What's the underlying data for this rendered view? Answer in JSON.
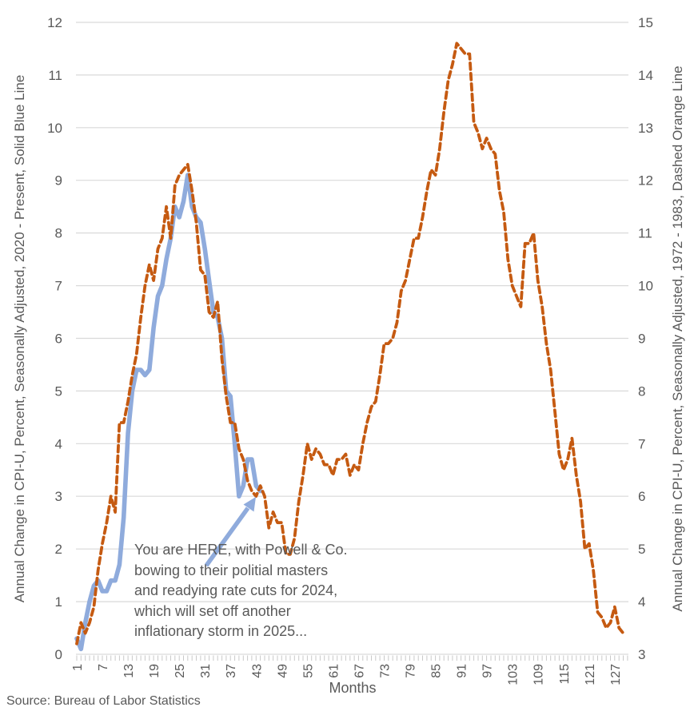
{
  "chart": {
    "left_axis": {
      "title": "Annual Change in CPI-U, Percent, Seasonally Adjusted, 2020 - Present, Solid Blue Line",
      "ticks": [
        0,
        1,
        2,
        3,
        4,
        5,
        6,
        7,
        8,
        9,
        10,
        11,
        12
      ]
    },
    "right_axis": {
      "title": "Annual Change in CPI-U, Percent, Seasonally Adjusted, 1972 - 1983, Dashed Orange Line",
      "ticks": [
        3,
        4,
        5,
        6,
        7,
        8,
        9,
        10,
        11,
        12,
        13,
        14,
        15
      ]
    },
    "x_axis": {
      "title": "Months",
      "tick_labels": [
        1,
        7,
        13,
        19,
        25,
        31,
        37,
        43,
        49,
        55,
        61,
        67,
        73,
        79,
        85,
        91,
        97,
        103,
        109,
        115,
        121,
        127
      ]
    },
    "annotation": {
      "text": "You are HERE, with Powell & Co.\nbowing to their politial masters\nand readying rate cuts for 2024,\nwhich will set off another\ninflationary storm in 2025..."
    },
    "source": "Source: Bureau of Labor Statistics",
    "colors": {
      "blue_line": "#8FABDC",
      "orange_line": "#C55A11",
      "gridline": "#D9D9D9",
      "tick_strip": "#C9C9C9",
      "text": "#595959"
    }
  },
  "chart_data": {
    "type": "line",
    "xlabel": "Months",
    "x_start": 1,
    "x_step": 1,
    "left_ylim": [
      0,
      12
    ],
    "right_ylim": [
      3,
      15
    ],
    "grid": true,
    "legend_position": "none (legend encoded in axis titles)",
    "series": [
      {
        "name": "Annual Change in CPI-U, Percent, Seasonally Adjusted, 2020 - Present, Solid Blue Line",
        "axis": "left",
        "style": "solid",
        "color": "#8FABDC",
        "values": [
          0.3,
          0.1,
          0.6,
          1.0,
          1.3,
          1.4,
          1.2,
          1.2,
          1.4,
          1.4,
          1.7,
          2.6,
          4.2,
          5.0,
          5.4,
          5.4,
          5.3,
          5.4,
          6.2,
          6.8,
          7.0,
          7.5,
          7.9,
          8.5,
          8.3,
          8.6,
          9.1,
          8.5,
          8.3,
          8.2,
          7.7,
          7.1,
          6.5,
          6.4,
          6.0,
          5.0,
          4.9,
          4.0,
          3.0,
          3.2,
          3.7,
          3.7,
          3.2,
          3.1
        ]
      },
      {
        "name": "Annual Change in CPI-U, Percent, Seasonally Adjusted, 1972 - 1983, Dashed Orange Line",
        "axis": "right",
        "style": "dashed",
        "color": "#C55A11",
        "values": [
          3.2,
          3.6,
          3.4,
          3.6,
          3.9,
          4.6,
          5.1,
          5.5,
          6.0,
          5.7,
          7.4,
          7.4,
          7.8,
          8.3,
          8.7,
          9.4,
          10.0,
          10.4,
          10.1,
          10.7,
          10.9,
          11.5,
          10.9,
          11.9,
          12.1,
          12.2,
          12.3,
          11.8,
          11.2,
          10.3,
          10.2,
          9.5,
          9.4,
          9.7,
          8.6,
          7.9,
          7.4,
          7.4,
          6.9,
          6.7,
          6.3,
          6.1,
          6.0,
          6.2,
          6.0,
          5.4,
          5.7,
          5.5,
          5.5,
          4.9,
          4.9,
          5.2,
          5.9,
          6.4,
          7.0,
          6.7,
          6.9,
          6.8,
          6.6,
          6.6,
          6.4,
          6.7,
          6.7,
          6.8,
          6.4,
          6.6,
          6.5,
          7.0,
          7.4,
          7.7,
          7.8,
          8.3,
          8.9,
          8.9,
          9.0,
          9.3,
          9.9,
          10.1,
          10.5,
          10.9,
          10.9,
          11.3,
          11.8,
          12.2,
          12.1,
          12.6,
          13.3,
          13.9,
          14.2,
          14.6,
          14.5,
          14.4,
          14.4,
          13.1,
          12.9,
          12.6,
          12.8,
          12.6,
          12.5,
          11.8,
          11.4,
          10.5,
          10.0,
          9.8,
          9.6,
          10.8,
          10.8,
          11.0,
          10.1,
          9.6,
          8.9,
          8.4,
          7.6,
          6.8,
          6.5,
          6.7,
          7.1,
          6.4,
          5.9,
          5.0,
          5.1,
          4.6,
          3.8,
          3.7,
          3.5,
          3.6,
          3.9,
          3.5,
          3.4
        ]
      }
    ]
  }
}
